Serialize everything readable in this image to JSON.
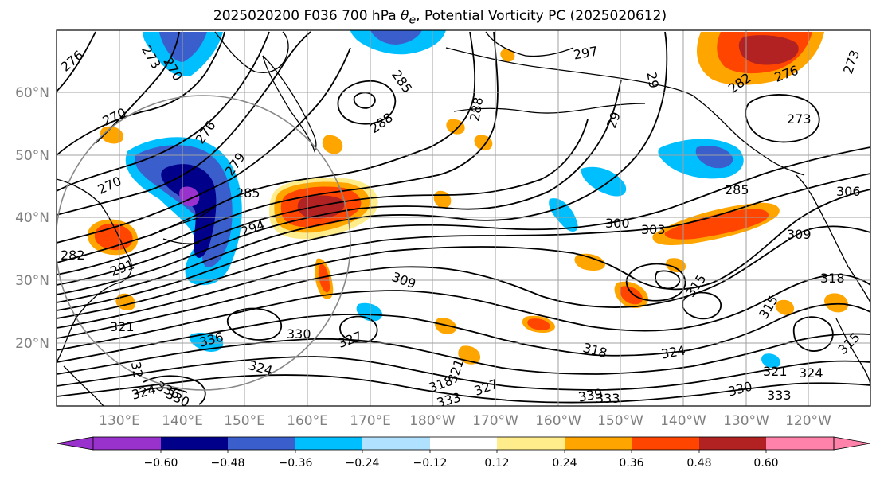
{
  "title": {
    "prefix": "2025020200 F036 700 hPa ",
    "theta_symbol": "θ",
    "theta_sub": "e",
    "suffix": ", Potential Vorticity PC (2025020612)"
  },
  "axes": {
    "lat_ticks": [
      "60°N",
      "50°N",
      "40°N",
      "30°N",
      "20°N"
    ],
    "lon_ticks": [
      "130°E",
      "140°E",
      "150°E",
      "160°E",
      "170°E",
      "180°W",
      "170°W",
      "160°W",
      "150°W",
      "140°W",
      "130°W",
      "120°W"
    ]
  },
  "colorbar": {
    "colors": [
      "#9932cc",
      "#00008b",
      "#3a5fcd",
      "#00bfff",
      "#b0e2ff",
      "#ffffff",
      "#ffec8b",
      "#ffa500",
      "#ff4500",
      "#b22222",
      "#ff82ab"
    ],
    "tick_labels": [
      "−0.60",
      "−0.48",
      "−0.36",
      "−0.24",
      "−0.12",
      "0.12",
      "0.24",
      "0.36",
      "0.48",
      "0.60"
    ]
  },
  "contour_labels": [
    "276",
    "273",
    "270",
    "297",
    "288",
    "285",
    "288",
    "29",
    "29",
    "282",
    "276",
    "273",
    "270",
    "276",
    "279",
    "270",
    "285",
    "273",
    "294",
    "300",
    "303",
    "285",
    "306",
    "309",
    "282",
    "291",
    "309",
    "315",
    "318",
    "315",
    "321",
    "336",
    "330",
    "327",
    "324",
    "318",
    "324",
    "321",
    "324",
    "315",
    "32",
    "324",
    "318",
    "321",
    "333",
    "336",
    "327",
    "330",
    "339",
    "333",
    "330",
    "333"
  ]
}
